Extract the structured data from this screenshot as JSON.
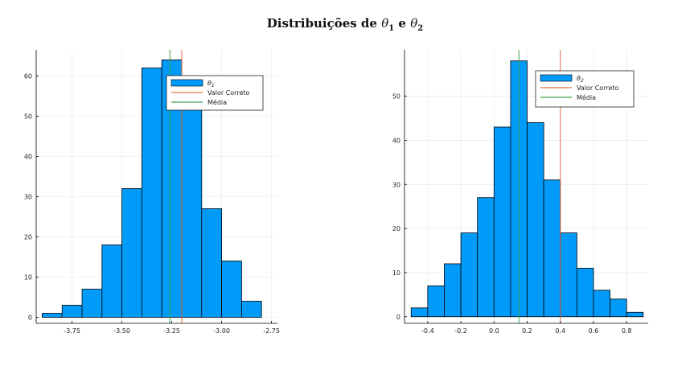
{
  "title": {
    "prefix": "Distribuições de ",
    "sym1": "θ",
    "sub1": "1",
    "mid": " e ",
    "sym2": "θ",
    "sub2": "2"
  },
  "colors": {
    "bar": "#009af9",
    "bar_edge": "#000000",
    "valor_correto": "#e26f46",
    "media": "#3da44d",
    "grid": "#e6e6e6",
    "axis": "#000000"
  },
  "chart_data": [
    {
      "type": "bar",
      "bin_edges": [
        -3.9,
        -3.8,
        -3.7,
        -3.6,
        -3.5,
        -3.4,
        -3.3,
        -3.2,
        -3.1,
        -3.0,
        -2.9,
        -2.8
      ],
      "values": [
        1,
        3,
        7,
        18,
        32,
        62,
        64,
        54,
        27,
        14,
        4
      ],
      "valor_correto": -3.2,
      "media": -3.26,
      "xticks": [
        -3.75,
        -3.5,
        -3.25,
        -3.0,
        -2.75
      ],
      "xtick_labels": [
        "-3.75",
        "-3.50",
        "-3.25",
        "-3.00",
        "-2.75"
      ],
      "yticks": [
        0,
        10,
        20,
        30,
        40,
        50,
        60
      ],
      "ytick_labels": [
        "0",
        "10",
        "20",
        "30",
        "40",
        "50",
        "60"
      ],
      "xlim": [
        -3.93,
        -2.72
      ],
      "ylim": [
        -1.5,
        66.5
      ],
      "grid": true,
      "legend": {
        "placement": "top-right",
        "entries": [
          {
            "label_sym": "θ",
            "label_sub": "1",
            "kind": "bar"
          },
          {
            "label": "Valor Correto",
            "kind": "line-red"
          },
          {
            "label": "Média",
            "kind": "line-green"
          }
        ]
      }
    },
    {
      "type": "bar",
      "bin_edges": [
        -0.5,
        -0.4,
        -0.3,
        -0.2,
        -0.1,
        0.0,
        0.1,
        0.2,
        0.3,
        0.4,
        0.5,
        0.6,
        0.7,
        0.8,
        0.9
      ],
      "values": [
        2,
        7,
        12,
        19,
        27,
        43,
        58,
        44,
        31,
        19,
        11,
        6,
        4,
        1
      ],
      "valor_correto": 0.4,
      "media": 0.15,
      "xticks": [
        -0.4,
        -0.2,
        0.0,
        0.2,
        0.4,
        0.6,
        0.8
      ],
      "xtick_labels": [
        "-0.4",
        "-0.2",
        "0.0",
        "0.2",
        "0.4",
        "0.6",
        "0.8"
      ],
      "yticks": [
        0,
        10,
        20,
        30,
        40,
        50
      ],
      "ytick_labels": [
        "0",
        "10",
        "20",
        "30",
        "40",
        "50"
      ],
      "xlim": [
        -0.54,
        0.93
      ],
      "ylim": [
        -1.5,
        60.5
      ],
      "grid": true,
      "legend": {
        "placement": "top-right",
        "entries": [
          {
            "label_sym": "θ",
            "label_sub": "2",
            "kind": "bar"
          },
          {
            "label": "Valor Correto",
            "kind": "line-red"
          },
          {
            "label": "Média",
            "kind": "line-green"
          }
        ]
      }
    }
  ]
}
